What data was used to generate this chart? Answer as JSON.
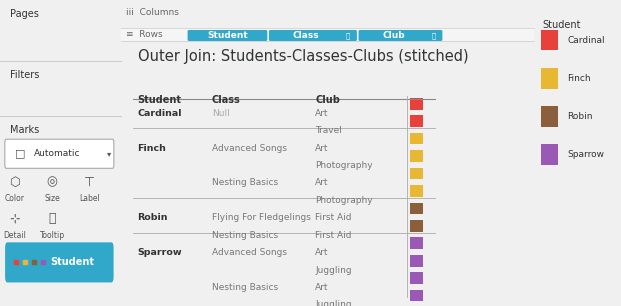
{
  "title": "Outer Join: Students-Classes-Clubs (stitched)",
  "bg_color": "#f0f0f0",
  "main_bg": "#ffffff",
  "panel_bg": "#e8e8e8",
  "teal": "#31a8c9",
  "rows_shelf": {
    "pills": [
      {
        "label": "Student",
        "color": "#31a8c9",
        "unrelated": false
      },
      {
        "label": "Class",
        "color": "#31a8c9",
        "unrelated": true
      },
      {
        "label": "Club",
        "color": "#31a8c9",
        "unrelated": true
      }
    ]
  },
  "table_headers": [
    "Student",
    "Class",
    "Club"
  ],
  "table_data": [
    {
      "student": "Cardinal",
      "class": "Null",
      "club": "Art",
      "color": "#e8403a"
    },
    {
      "student": "",
      "class": "",
      "club": "Travel",
      "color": "#e8403a"
    },
    {
      "student": "Finch",
      "class": "Advanced Songs",
      "club": "Art",
      "color": "#e8b832"
    },
    {
      "student": "",
      "class": "",
      "club": "Photography",
      "color": "#e8b832"
    },
    {
      "student": "",
      "class": "Nesting Basics",
      "club": "Art",
      "color": "#e8b832"
    },
    {
      "student": "",
      "class": "",
      "club": "Photography",
      "color": "#e8b832"
    },
    {
      "student": "Robin",
      "class": "Flying For Fledgelings",
      "club": "First Aid",
      "color": "#8b5e3c"
    },
    {
      "student": "",
      "class": "Nesting Basics",
      "club": "First Aid",
      "color": "#8b5e3c"
    },
    {
      "student": "Sparrow",
      "class": "Advanced Songs",
      "club": "Art",
      "color": "#9b59b6"
    },
    {
      "student": "",
      "class": "",
      "club": "Juggling",
      "color": "#9b59b6"
    },
    {
      "student": "",
      "class": "Nesting Basics",
      "club": "Art",
      "color": "#9b59b6"
    },
    {
      "student": "",
      "class": "",
      "club": "Juggling",
      "color": "#9b59b6"
    }
  ],
  "divider_rows": [
    2,
    6,
    8
  ],
  "legend": {
    "title": "Student",
    "entries": [
      {
        "label": "Cardinal",
        "color": "#e8403a"
      },
      {
        "label": "Finch",
        "color": "#e8b832"
      },
      {
        "label": "Robin",
        "color": "#8b5e3c"
      },
      {
        "label": "Sparrow",
        "color": "#9b59b6"
      }
    ]
  },
  "marks_pill_color": "#31a8c9",
  "marks_pill_label": "Student",
  "null_color": "#aaaaaa",
  "class_color": "#777777",
  "dot_colors": [
    "#e8403a",
    "#e8b832",
    "#8b5e3c",
    "#9b59b6"
  ]
}
